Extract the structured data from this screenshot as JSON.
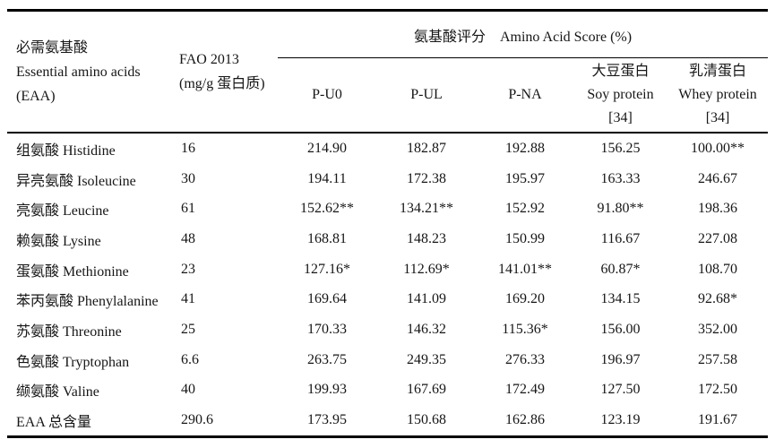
{
  "meta": {
    "text_color": "#161616",
    "rule_color": "#000000",
    "background": "#ffffff"
  },
  "table": {
    "eaa_header": {
      "line1": "必需氨基酸",
      "line2": "Essential amino acids",
      "line3": "(EAA)"
    },
    "fao_header": {
      "line1": "FAO 2013",
      "line2": "(mg/g 蛋白质)"
    },
    "score_group_header": "氨基酸评分　Amino Acid Score (%)",
    "score_columns": [
      {
        "label": "P-U0",
        "label2": "",
        "ref": ""
      },
      {
        "label": "P-UL",
        "label2": "",
        "ref": ""
      },
      {
        "label": "P-NA",
        "label2": "",
        "ref": ""
      },
      {
        "label": "大豆蛋白",
        "label2": "Soy protein",
        "ref": "[34]"
      },
      {
        "label": "乳清蛋白",
        "label2": "Whey protein",
        "ref": "[34]"
      }
    ],
    "rows": [
      {
        "name": "组氨酸 Histidine",
        "fao": "16",
        "values": [
          "214.90",
          "182.87",
          "192.88",
          "156.25",
          "100.00**"
        ]
      },
      {
        "name": "异亮氨酸 Isoleucine",
        "fao": "30",
        "values": [
          "194.11",
          "172.38",
          "195.97",
          "163.33",
          "246.67"
        ]
      },
      {
        "name": "亮氨酸 Leucine",
        "fao": "61",
        "values": [
          "152.62**",
          "134.21**",
          "152.92",
          "91.80**",
          "198.36"
        ]
      },
      {
        "name": "赖氨酸 Lysine",
        "fao": "48",
        "values": [
          "168.81",
          "148.23",
          "150.99",
          "116.67",
          "227.08"
        ]
      },
      {
        "name": "蛋氨酸 Methionine",
        "fao": "23",
        "values": [
          "127.16*",
          "112.69*",
          "141.01**",
          "60.87*",
          "108.70"
        ]
      },
      {
        "name": "苯丙氨酸 Phenylalanine",
        "fao": "41",
        "values": [
          "169.64",
          "141.09",
          "169.20",
          "134.15",
          "92.68*"
        ]
      },
      {
        "name": "苏氨酸 Threonine",
        "fao": "25",
        "values": [
          "170.33",
          "146.32",
          "115.36*",
          "156.00",
          "352.00"
        ]
      },
      {
        "name": "色氨酸 Tryptophan",
        "fao": "6.6",
        "values": [
          "263.75",
          "249.35",
          "276.33",
          "196.97",
          "257.58"
        ]
      },
      {
        "name": "缬氨酸 Valine",
        "fao": "40",
        "values": [
          "199.93",
          "167.69",
          "172.49",
          "127.50",
          "172.50"
        ]
      },
      {
        "name": "EAA 总含量",
        "fao": "290.6",
        "values": [
          "173.95",
          "150.68",
          "162.86",
          "123.19",
          "191.67"
        ]
      }
    ]
  }
}
